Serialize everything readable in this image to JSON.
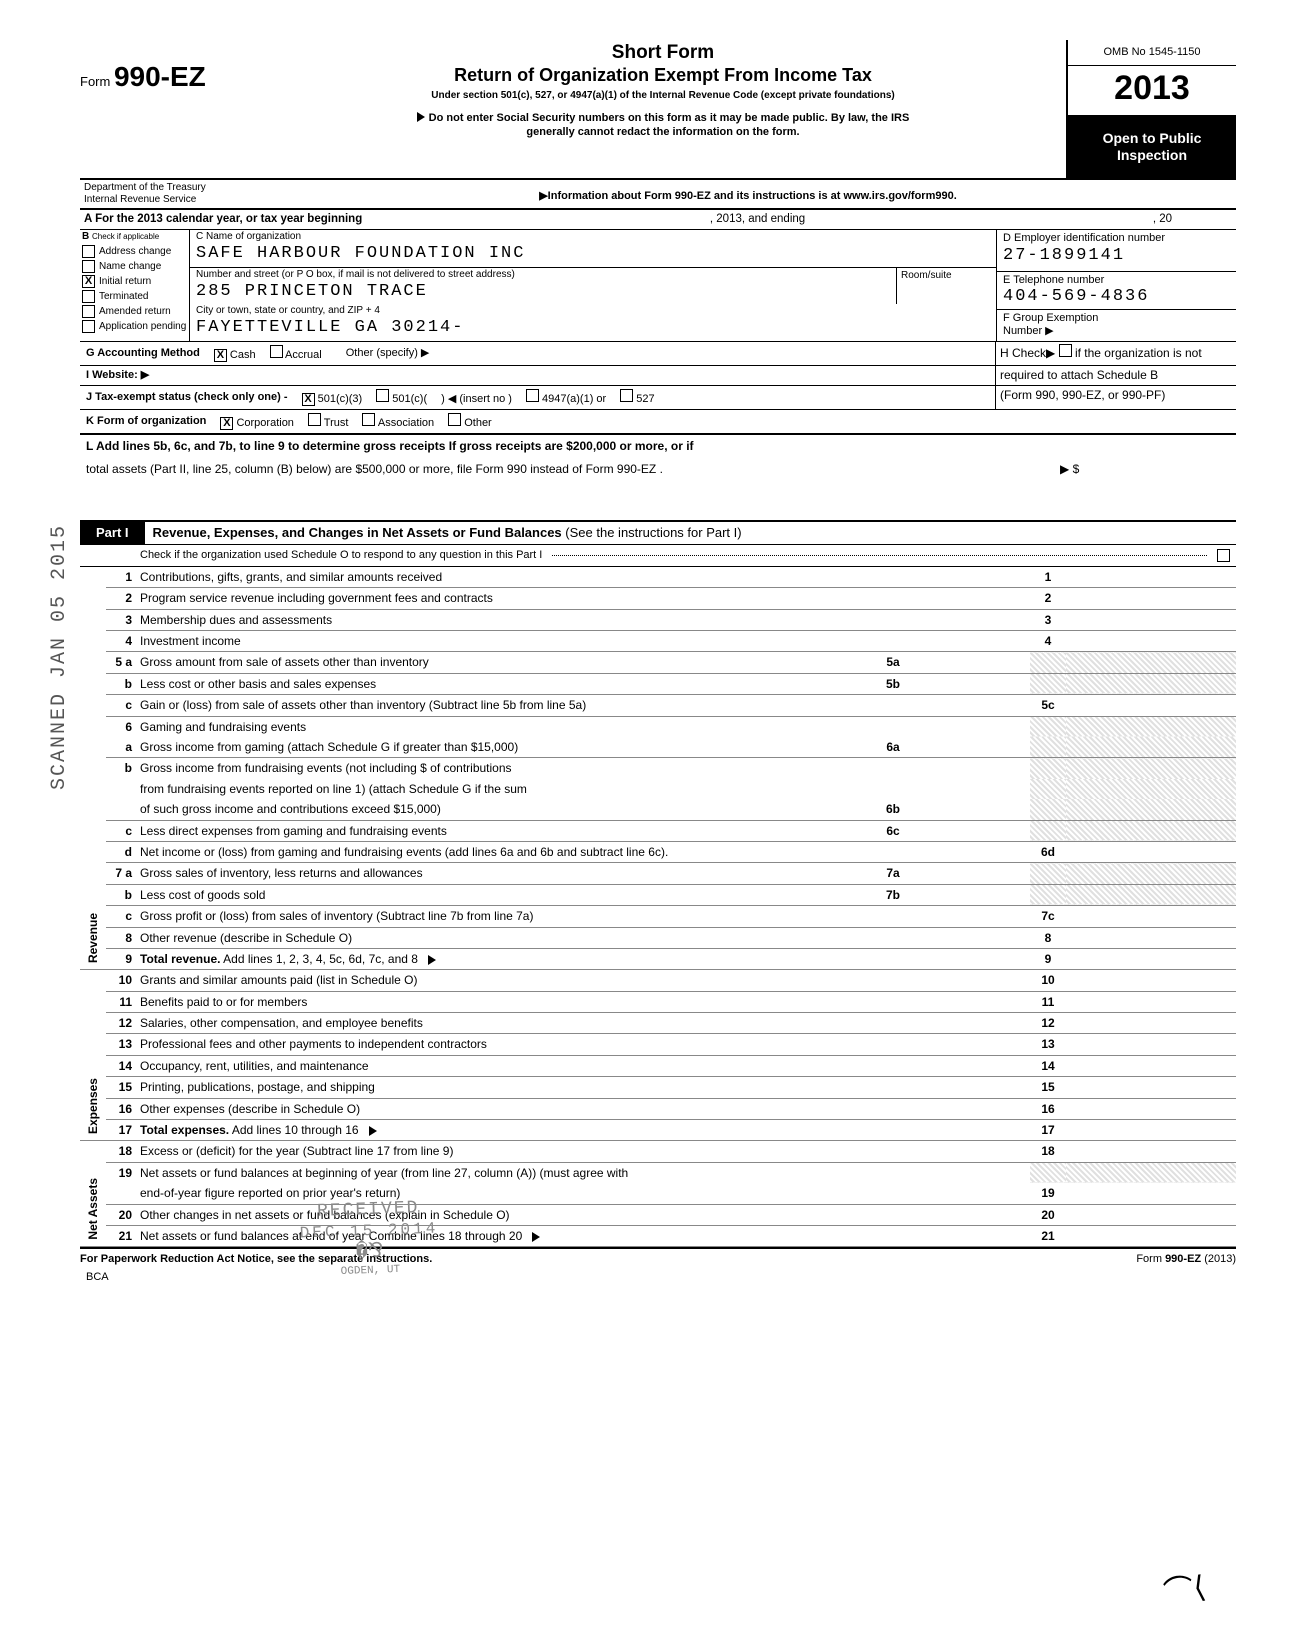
{
  "watermark": "SCANNED JAN 05 2015",
  "form": {
    "prefix": "Form",
    "number": "990-EZ",
    "title1": "Short Form",
    "title2": "Return of Organization Exempt From Income Tax",
    "subtitle": "Under section 501(c), 527, or 4947(a)(1) of the Internal Revenue Code (except private foundations)",
    "warn1": "Do not enter Social Security numbers on this form as it may be made public. By law, the IRS",
    "warn2": "generally cannot redact the information on the form.",
    "info_line": "▶Information about Form 990-EZ and its instructions is at www.irs.gov/form990.",
    "omb": "OMB No 1545-1150",
    "year": "2013",
    "open1": "Open to Public",
    "open2": "Inspection",
    "dept1": "Department of the Treasury",
    "dept2": "Internal Revenue Service"
  },
  "section_a": {
    "line": "A For the 2013 calendar year, or tax year beginning",
    "mid": ", 2013, and ending",
    "end": ", 20"
  },
  "b": {
    "header": "Check if applicable",
    "letter": "B",
    "items": [
      {
        "label": "Address change",
        "checked": false
      },
      {
        "label": "Name change",
        "checked": false
      },
      {
        "label": "Initial return",
        "checked": true
      },
      {
        "label": "Terminated",
        "checked": false
      },
      {
        "label": "Amended return",
        "checked": false
      },
      {
        "label": "Application pending",
        "checked": false
      }
    ]
  },
  "c": {
    "name_label": "C   Name of organization",
    "name": "SAFE HARBOUR FOUNDATION INC",
    "street_label": "Number and street (or P O  box, if mail is not delivered to street address)",
    "room_label": "Room/suite",
    "street": "285 PRINCETON TRACE",
    "city_label": "City or town, state or country, and ZIP + 4",
    "city": "FAYETTEVILLE GA 30214-"
  },
  "d": {
    "label": "D Employer identification number",
    "val": "27-1899141"
  },
  "e": {
    "label": "E Telephone number",
    "val": "404-569-4836"
  },
  "f": {
    "label": "F Group Exemption",
    "label2": "Number ▶"
  },
  "g": {
    "label": "G Accounting Method",
    "opts": [
      {
        "label": "Cash",
        "checked": true
      },
      {
        "label": "Accrual",
        "checked": false
      }
    ],
    "other": "Other (specify) ▶"
  },
  "h": {
    "label": "H Check▶",
    "note": "if the organization is not",
    "note2": "required to attach Schedule B",
    "note3": "(Form 990, 990-EZ, or 990-PF)"
  },
  "i": {
    "label": "I  Website: ▶"
  },
  "j": {
    "label": "J Tax-exempt status (check only one) -",
    "opts": [
      {
        "label": "501(c)(3)",
        "checked": true
      },
      {
        "label": "501(c)(",
        "checked": false
      },
      {
        "label": "4947(a)(1) or",
        "checked": false
      },
      {
        "label": "527",
        "checked": false
      }
    ],
    "insert": ") ◀ (insert no )"
  },
  "k": {
    "label": "K Form of organization",
    "opts": [
      {
        "label": "Corporation",
        "checked": true
      },
      {
        "label": "Trust",
        "checked": false
      },
      {
        "label": "Association",
        "checked": false
      },
      {
        "label": "Other",
        "checked": false
      }
    ]
  },
  "l": {
    "line1": "L Add lines 5b, 6c, and 7b, to line 9 to determine gross receipts  If gross receipts are $200,000 or more, or if",
    "line2": "total assets (Part II, line 25, column (B) below) are $500,000 or more, file Form 990 instead of Form 990-EZ .",
    "amount": "▶  $"
  },
  "part1": {
    "badge": "Part I",
    "title": "Revenue, Expenses, and Changes in Net Assets or Fund Balances",
    "paren": "(See the instructions for Part I)",
    "check_line": "Check if the organization used Schedule O to respond to any question in this Part I"
  },
  "groups": {
    "revenue": "Revenue",
    "expenses": "Expenses",
    "netassets": "Net Assets"
  },
  "lines": [
    {
      "n": "1",
      "d": "Contributions, gifts, grants, and similar amounts received",
      "amt": "1"
    },
    {
      "n": "2",
      "d": "Program service revenue including government fees and contracts",
      "amt": "2"
    },
    {
      "n": "3",
      "d": "Membership dues and assessments",
      "amt": "3"
    },
    {
      "n": "4",
      "d": "Investment income",
      "amt": "4"
    },
    {
      "n": "5 a",
      "d": "Gross amount from sale of assets other than inventory",
      "mini": "5a",
      "shade": true
    },
    {
      "n": "b",
      "d": "Less  cost or other basis and sales expenses",
      "mini": "5b",
      "shade": true
    },
    {
      "n": "c",
      "d": "Gain or (loss) from sale of assets other than inventory (Subtract line 5b from line 5a)",
      "amt": "5c"
    },
    {
      "n": "6",
      "d": "Gaming and fundraising events",
      "shade": true,
      "noborder": true
    },
    {
      "n": "a",
      "d": "Gross income from gaming (attach Schedule G if greater than $15,000)",
      "mini": "6a",
      "shade": true
    },
    {
      "n": "b",
      "d": "Gross income from fundraising events (not including $                                            of contributions",
      "shade": true,
      "noborder": true
    },
    {
      "n": "",
      "d": "from fundraising events reported on line 1) (attach Schedule G if the sum",
      "shade": true,
      "noborder": true
    },
    {
      "n": "",
      "d": "of such gross income and contributions exceed $15,000)",
      "mini": "6b",
      "shade": true
    },
    {
      "n": "c",
      "d": "Less  direct expenses from gaming and fundraising events",
      "mini": "6c",
      "shade": true
    },
    {
      "n": "d",
      "d": "Net income or (loss) from gaming and fundraising events (add lines 6a and 6b and subtract line 6c).",
      "amt": "6d"
    },
    {
      "n": "7 a",
      "d": "Gross sales of inventory, less returns and allowances",
      "mini": "7a",
      "shade": true
    },
    {
      "n": "b",
      "d": "Less  cost of goods sold",
      "mini": "7b",
      "shade": true
    },
    {
      "n": "c",
      "d": "Gross profit or (loss) from sales of inventory (Subtract line 7b from line 7a)",
      "amt": "7c"
    },
    {
      "n": "8",
      "d": "Other revenue (describe in Schedule O)",
      "amt": "8"
    },
    {
      "n": "9",
      "d": "Total revenue. Add lines 1, 2, 3, 4, 5c, 6d, 7c, and 8",
      "amt": "9",
      "arrow": true,
      "bold": true
    },
    {
      "n": "10",
      "d": "Grants and similar amounts paid (list in Schedule O)",
      "amt": "10"
    },
    {
      "n": "11",
      "d": "Benefits paid to or for members",
      "amt": "11"
    },
    {
      "n": "12",
      "d": "Salaries, other compensation, and employee benefits",
      "amt": "12"
    },
    {
      "n": "13",
      "d": "Professional fees and other payments to independent contractors",
      "amt": "13"
    },
    {
      "n": "14",
      "d": "Occupancy, rent, utilities, and maintenance",
      "amt": "14"
    },
    {
      "n": "15",
      "d": "Printing, publications, postage, and shipping",
      "amt": "15"
    },
    {
      "n": "16",
      "d": "Other expenses (describe in Schedule O)",
      "amt": "16"
    },
    {
      "n": "17",
      "d": "Total expenses.  Add lines 10 through 16",
      "amt": "17",
      "arrow": true,
      "bold": true
    },
    {
      "n": "18",
      "d": "Excess or (deficit) for the year (Subtract line 17 from line 9)",
      "amt": "18"
    },
    {
      "n": "19",
      "d": "Net assets or fund balances at beginning of year (from line 27, column (A)) (must agree with",
      "shade": true,
      "noborder": true
    },
    {
      "n": "",
      "d": "end-of-year figure reported on prior year's return)",
      "amt": "19"
    },
    {
      "n": "20",
      "d": "Other changes in net assets or fund balances (explain in Schedule O)",
      "amt": "20"
    },
    {
      "n": "21",
      "d": "Net assets or fund balances at end of year  Combine lines 18 through 20",
      "amt": "21",
      "arrow": true
    }
  ],
  "footer": {
    "left": "For Paperwork Reduction Act Notice, see the separate instructions.",
    "mid": "BCA",
    "right": "Form 990-EZ (2013)"
  },
  "stamp": {
    "l1": "RECEIVED",
    "l2": "DEC 15 2014",
    "l3": "OGDEN, UT"
  }
}
